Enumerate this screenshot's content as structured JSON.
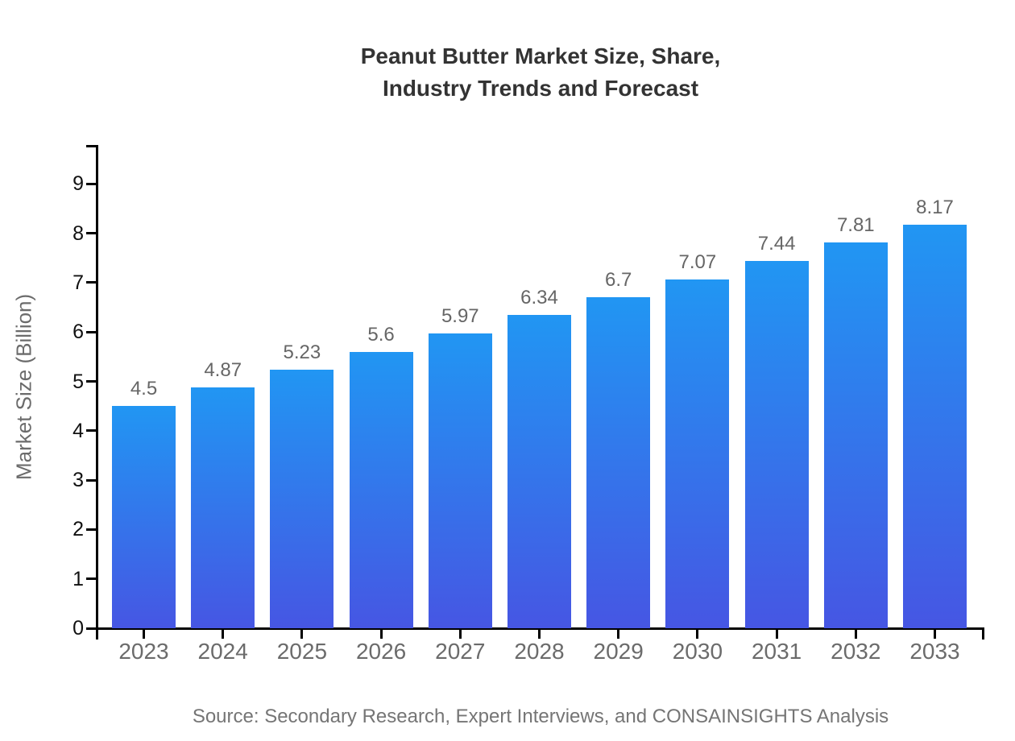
{
  "title": {
    "line1": "Peanut Butter Market Size, Share,",
    "line2": "Industry Trends and Forecast"
  },
  "source": "Source: Secondary Research, Expert Interviews, and CONSAINSIGHTS Analysis",
  "chart_data": {
    "type": "bar",
    "title": "Peanut Butter Market Size, Share, Industry Trends and Forecast",
    "categories": [
      "2023",
      "2024",
      "2025",
      "2026",
      "2027",
      "2028",
      "2029",
      "2030",
      "2031",
      "2032",
      "2033"
    ],
    "values": [
      4.5,
      4.87,
      5.23,
      5.6,
      5.97,
      6.34,
      6.7,
      7.07,
      7.44,
      7.81,
      8.17
    ],
    "value_labels": [
      "4.5",
      "4.87",
      "5.23",
      "5.6",
      "5.97",
      "6.34",
      "6.7",
      "7.07",
      "7.44",
      "7.81",
      "8.17"
    ],
    "xlabel": "",
    "ylabel": "Market Size (Billion)",
    "ylim": [
      0,
      9.8
    ],
    "y_ticks": [
      0,
      1,
      2,
      3,
      4,
      5,
      6,
      7,
      8,
      9
    ],
    "grid": false,
    "legend": false,
    "colors": {
      "bar_gradient_top": "#2196F3",
      "bar_gradient_bottom": "#4656E3",
      "axis": "#000000",
      "y_tick_label": "#111111",
      "x_tick_label": "#6B6B6B",
      "value_label": "#666666",
      "title": "#333333",
      "y_axis_title": "#6B6B6B",
      "source": "#757575"
    }
  }
}
